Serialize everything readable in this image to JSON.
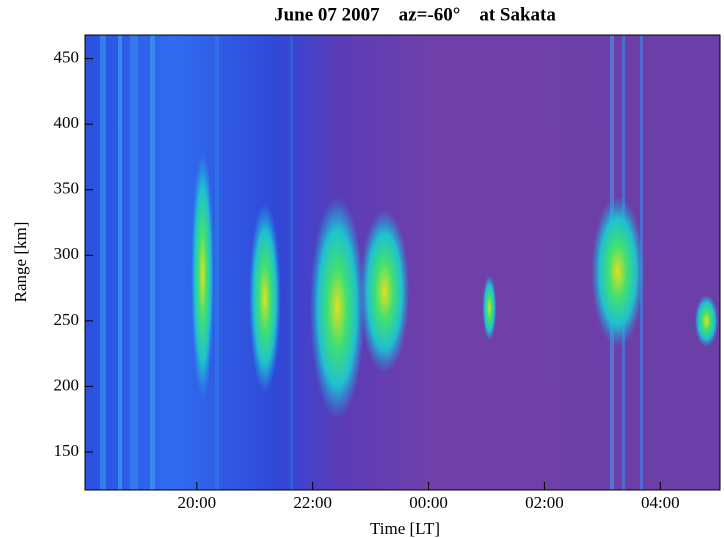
{
  "chart_data": {
    "type": "heatmap",
    "title": "June 07 2007    az=-60°    at Sakata",
    "x_label": "Time [LT]",
    "y_label": "Range [km]",
    "xlim": [
      18.07,
      29.03
    ],
    "xticks": [
      {
        "value": 20,
        "label": "20:00"
      },
      {
        "value": 22,
        "label": "22:00"
      },
      {
        "value": 24,
        "label": "00:00"
      },
      {
        "value": 26,
        "label": "02:00"
      },
      {
        "value": 28,
        "label": "04:00"
      }
    ],
    "ylim": [
      121,
      468
    ],
    "yticks": [
      150,
      200,
      250,
      300,
      350,
      400,
      450
    ],
    "echo_regions": [
      {
        "x": [
          19.9,
          20.3
        ],
        "y": [
          190,
          380
        ]
      },
      {
        "x": [
          20.9,
          21.45
        ],
        "y": [
          195,
          340
        ]
      },
      {
        "x": [
          21.95,
          22.9
        ],
        "y": [
          175,
          345
        ]
      },
      {
        "x": [
          22.81,
          23.67
        ],
        "y": [
          210,
          335
        ]
      },
      {
        "x": [
          24.93,
          25.17
        ],
        "y": [
          235,
          285
        ]
      },
      {
        "x": [
          26.81,
          27.72
        ],
        "y": [
          230,
          345
        ]
      },
      {
        "x": [
          28.59,
          29.0
        ],
        "y": [
          230,
          270
        ]
      }
    ]
  }
}
